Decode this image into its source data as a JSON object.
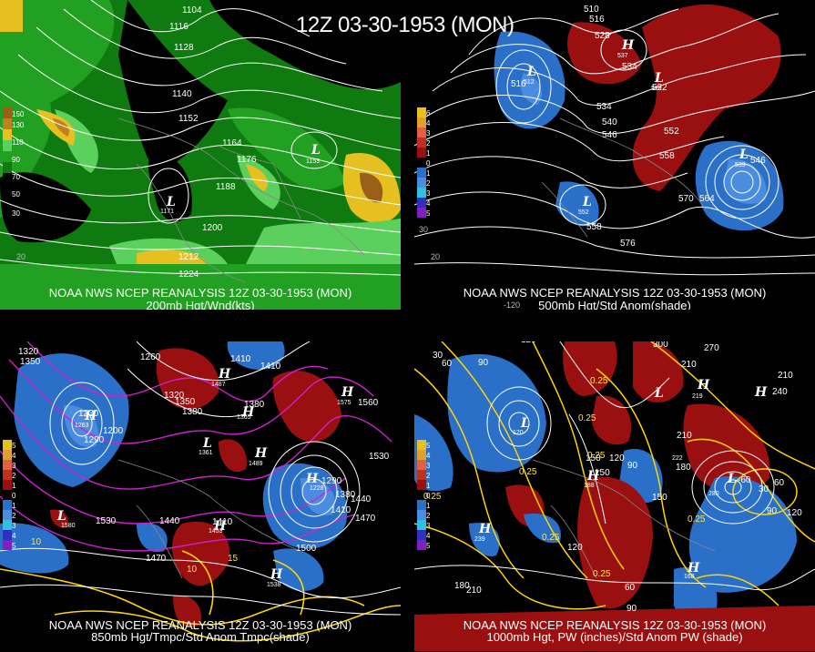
{
  "main_title": "12Z 03-30-1953 (MON)",
  "panels": {
    "p200": {
      "caption1": "NOAA NWS NCEP REANALYSIS 12Z 03-30-1953 (MON)",
      "caption2": "200mb Hgt/Wnd(kts)",
      "colorbar_labels": [
        "150",
        "130",
        "110",
        "90",
        "70",
        "50",
        "30"
      ],
      "contour_labels": [
        "1104",
        "1116",
        "1128",
        "1140",
        "1152",
        "1164",
        "1176",
        "1188",
        "1200",
        "1212",
        "1224"
      ],
      "lows": [
        "L",
        "L"
      ],
      "low_values": [
        "1153",
        "1171"
      ],
      "grid_labels": [
        "20",
        "30"
      ]
    },
    "p500": {
      "caption1": "NOAA NWS NCEP REANALYSIS 12Z 03-30-1953 (MON)",
      "caption2": "500mb Hgt/Std Anom(shade)",
      "colorbar_labels": [
        "6",
        "4",
        "3",
        "2",
        "1",
        "0",
        "1",
        "2",
        "3",
        "4",
        "5"
      ],
      "contour_labels": [
        "510",
        "516",
        "528",
        "534",
        "540",
        "546",
        "552",
        "558",
        "564",
        "570",
        "576",
        "558",
        "534",
        "522",
        "546",
        "516"
      ],
      "symbols": [
        "L",
        "H",
        "L",
        "L",
        "L"
      ],
      "symbol_values": [
        "512",
        "537",
        "529",
        "539",
        "552"
      ],
      "grid_labels": [
        "-120",
        "20",
        "30"
      ]
    },
    "p850": {
      "caption1": "NOAA NWS NCEP REANALYSIS 12Z 03-30-1953 (MON)",
      "caption2": "850mb Hgt/Tmpc/Std Anom Tmpc(shade)",
      "colorbar_labels": [
        "5",
        "4",
        "3",
        "2",
        "1",
        "0",
        "1",
        "2",
        "3",
        "4",
        "5"
      ],
      "contour_labels": [
        "1320",
        "1350",
        "1260",
        "1230",
        "1200",
        "1290",
        "1320",
        "1350",
        "1380",
        "1380",
        "1410",
        "1410",
        "1560",
        "1530",
        "1440",
        "1410",
        "1470",
        "1500",
        "1530",
        "1440",
        "1290",
        "1380",
        "1410",
        "1470"
      ],
      "symbols": [
        "H",
        "H",
        "H",
        "L",
        "H",
        "L",
        "H",
        "H",
        "H",
        "H"
      ],
      "symbol_values": [
        "1487",
        "1575",
        "1365",
        "1361",
        "1489",
        "1580",
        "1453",
        "1538",
        "1228",
        "1263"
      ],
      "temp_labels": [
        "10",
        "15",
        "10"
      ]
    },
    "p1000": {
      "caption1": "NOAA NWS NCEP REANALYSIS 12Z 03-30-1953 (MON)",
      "caption2": "1000mb Hgt, PW (inches)/Std Anom PW (shade)",
      "colorbar_labels": [
        "5",
        "4",
        "3",
        "2",
        "1",
        "0",
        "1",
        "2",
        "3",
        "4",
        "5"
      ],
      "contour_labels": [
        "120",
        "30",
        "60",
        "90",
        "210",
        "210",
        "270",
        "300",
        "240",
        "210",
        "150",
        "180",
        "150",
        "120",
        "90",
        "150",
        "120",
        "60",
        "90",
        "210",
        "180",
        "60",
        "30",
        "90",
        "120"
      ],
      "pw_labels": [
        "0.25",
        "0.25",
        "0.25",
        "0.25",
        "0.25",
        "0.25",
        "0.25",
        "0.25"
      ],
      "symbols": [
        "L",
        "H",
        "H",
        "H",
        "L",
        "H",
        "L",
        "H"
      ],
      "symbol_values": [
        "120",
        "239",
        "219",
        "188",
        "-60",
        "280",
        "168",
        "222"
      ]
    }
  },
  "colors": {
    "wind_dark": "#0f7a0f",
    "wind_mid": "#22a022",
    "wind_light": "#5cd05c",
    "wind_yellow": "#e6c020",
    "wind_orange": "#c08020",
    "wind_brown": "#9a6018",
    "anom_pos": "#9a1010",
    "anom_neg": "#2a70c8",
    "contour_yellow": "#ffd400",
    "contour_magenta": "#d020d0"
  }
}
